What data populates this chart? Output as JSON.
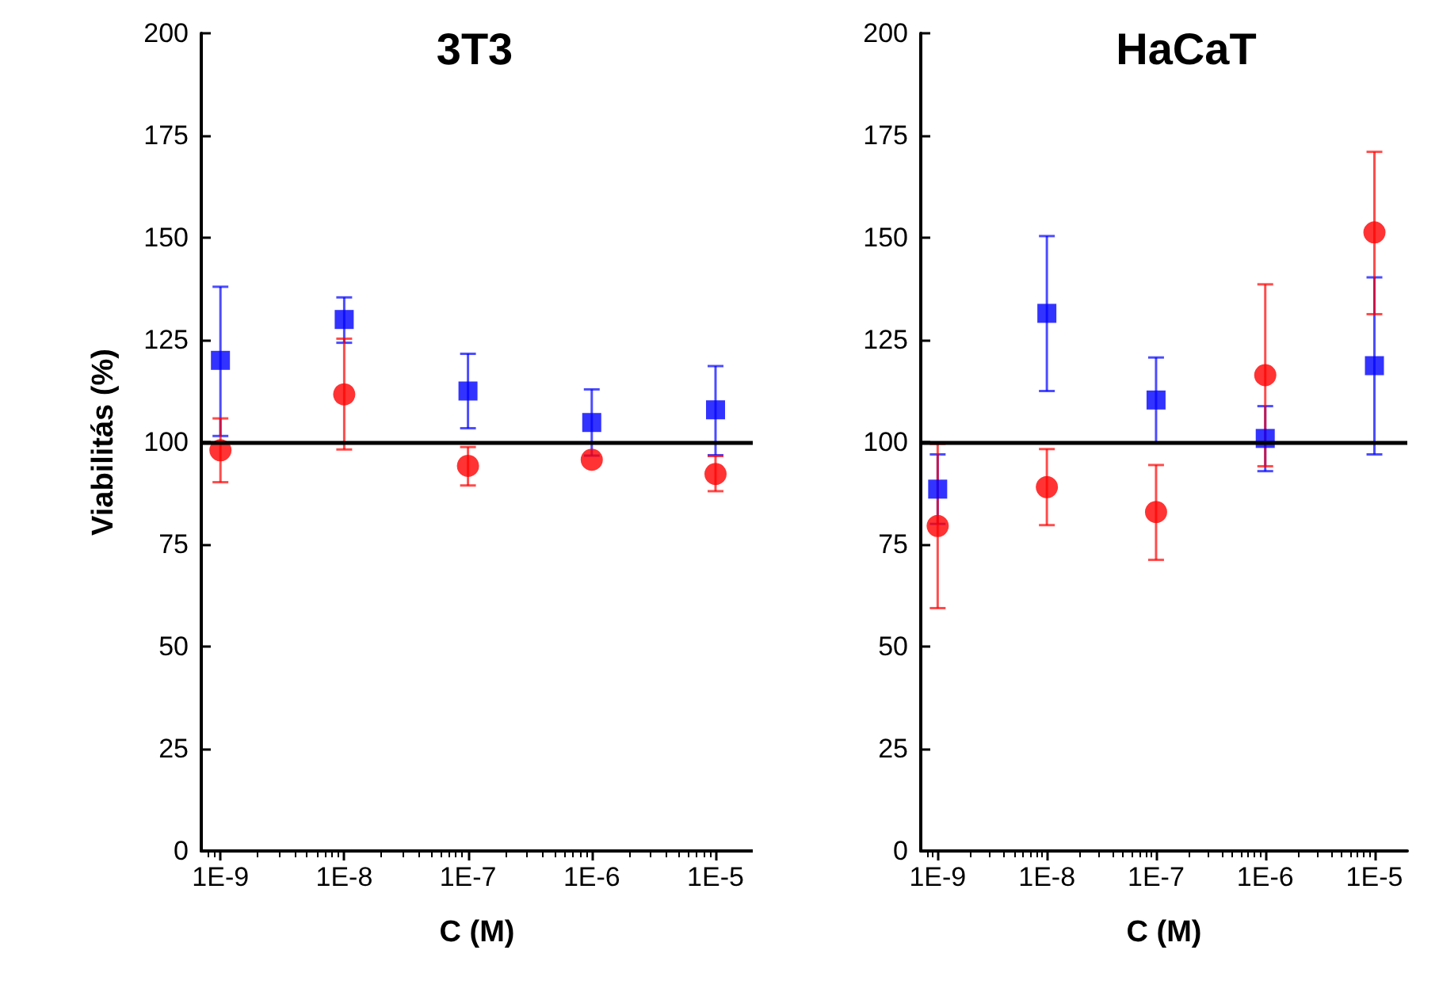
{
  "chart_data": [
    {
      "type": "scatter",
      "title": "3T3",
      "xlabel": "C (M)",
      "ylabel": "Viabilitás (%)",
      "log": "x",
      "grid": false,
      "x": [
        1e-09,
        1e-08,
        1e-07,
        1e-06,
        1e-05
      ],
      "xlim": [
        7e-10,
        2e-05
      ],
      "xticks": [
        {
          "value": 1e-09,
          "label": "1E-9"
        },
        {
          "value": 1e-08,
          "label": "1E-8"
        },
        {
          "value": 1e-07,
          "label": "1E-7"
        },
        {
          "value": 1e-06,
          "label": "1E-6"
        },
        {
          "value": 1e-05,
          "label": "1E-5"
        }
      ],
      "ylim": [
        0,
        200
      ],
      "yticks": [
        0,
        25,
        50,
        75,
        100,
        125,
        150,
        175,
        200
      ],
      "ref_lines": [
        {
          "axis": "y",
          "value": 100,
          "color": "#000000"
        }
      ],
      "series": [
        {
          "color": "#0000ff",
          "marker": "square",
          "values": [
            120,
            130,
            112.5,
            104.8,
            107.9
          ],
          "errors": [
            [
              101.5,
              138
            ],
            [
              124.3,
              135.4
            ],
            [
              103.4,
              121.6
            ],
            [
              96.7,
              112.9
            ],
            [
              96.8,
              118.6
            ]
          ]
        },
        {
          "color": "#ff0000",
          "marker": "circle",
          "values": [
            98,
            111.7,
            94.2,
            95.7,
            92.2
          ],
          "errors": [
            [
              90.2,
              105.8
            ],
            [
              98.2,
              125.3
            ],
            [
              89.4,
              98.8
            ],
            null,
            [
              88,
              96.6
            ]
          ]
        }
      ]
    },
    {
      "type": "scatter",
      "title": "HaCaT",
      "xlabel": "C (M)",
      "log": "x",
      "grid": false,
      "x": [
        1e-09,
        1e-08,
        1e-07,
        1e-06,
        1e-05
      ],
      "xlim": [
        7e-10,
        2e-05
      ],
      "xticks": [
        {
          "value": 1e-09,
          "label": "1E-9"
        },
        {
          "value": 1e-08,
          "label": "1E-8"
        },
        {
          "value": 1e-07,
          "label": "1E-7"
        },
        {
          "value": 1e-06,
          "label": "1E-6"
        },
        {
          "value": 1e-05,
          "label": "1E-5"
        }
      ],
      "ylim": [
        0,
        200
      ],
      "yticks": [
        0,
        25,
        50,
        75,
        100,
        125,
        150,
        175,
        200
      ],
      "ref_lines": [
        {
          "axis": "y",
          "value": 100,
          "color": "#000000"
        }
      ],
      "series": [
        {
          "color": "#0000ff",
          "marker": "square",
          "values": [
            88.5,
            131.5,
            110.3,
            100.9,
            118.7
          ],
          "errors": [
            [
              80,
              97
            ],
            [
              112.5,
              150.4
            ],
            [
              99.9,
              120.7
            ],
            [
              92.9,
              108.8
            ],
            [
              97,
              140.3
            ]
          ]
        },
        {
          "color": "#ff0000",
          "marker": "circle",
          "values": [
            79.5,
            89,
            82.9,
            116.4,
            151.3
          ],
          "errors": [
            [
              59.4,
              99.6
            ],
            [
              79.7,
              98.3
            ],
            [
              71.2,
              94.4
            ],
            [
              94.1,
              138.6
            ],
            [
              131.3,
              171
            ]
          ]
        }
      ]
    }
  ]
}
